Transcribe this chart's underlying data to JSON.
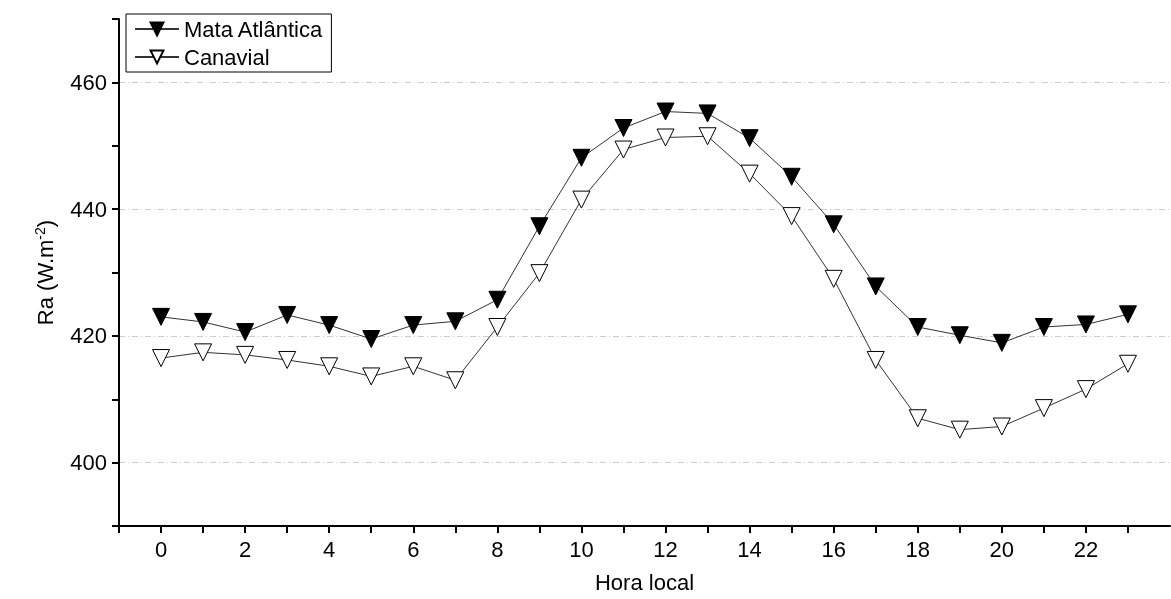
{
  "chart_data": {
    "type": "line",
    "xlabel": "Hora local",
    "ylabel": "Ra (W.m$^{-2}$)",
    "x": [
      0,
      1,
      2,
      3,
      4,
      5,
      6,
      7,
      8,
      9,
      10,
      11,
      12,
      13,
      14,
      15,
      16,
      17,
      18,
      19,
      20,
      21,
      22,
      23
    ],
    "series": [
      {
        "name": "Mata Atlântica",
        "color": "#000000",
        "values": [
          423.0,
          422.2,
          420.6,
          423.3,
          421.7,
          419.5,
          421.7,
          422.3,
          425.7,
          437.3,
          448.1,
          452.8,
          455.4,
          455.1,
          451.2,
          445.1,
          437.6,
          427.8,
          421.4,
          420.1,
          418.9,
          421.4,
          421.8,
          423.4
        ]
      },
      {
        "name": "Canavial",
        "color": "#ffffff",
        "values": [
          416.5,
          417.4,
          417.0,
          416.2,
          415.2,
          413.6,
          415.2,
          413.0,
          421.4,
          429.9,
          441.5,
          449.4,
          451.3,
          451.5,
          445.6,
          438.9,
          429.0,
          416.2,
          407.0,
          405.2,
          405.7,
          408.6,
          411.6,
          415.6
        ]
      }
    ],
    "xlim": [
      -1,
      24
    ],
    "xticks": [
      {
        "value": -1,
        "label": null
      },
      0,
      {
        "value": 1,
        "label": null
      },
      2,
      {
        "value": 3,
        "label": null
      },
      4,
      {
        "value": 5,
        "label": null
      },
      6,
      {
        "value": 7,
        "label": null
      },
      8,
      {
        "value": 9,
        "label": null
      },
      10,
      {
        "value": 11,
        "label": null
      },
      12,
      {
        "value": 13,
        "label": null
      },
      14,
      {
        "value": 15,
        "label": null
      },
      16,
      {
        "value": 17,
        "label": null
      },
      18,
      {
        "value": 19,
        "label": null
      },
      20,
      {
        "value": 21,
        "label": null
      },
      22,
      {
        "value": 23,
        "label": null
      }
    ],
    "ylim": [
      390,
      470
    ],
    "yticks": [
      {
        "value": 390,
        "label": null
      },
      400,
      {
        "value": 410,
        "label": null
      },
      420,
      {
        "value": 430,
        "label": null
      },
      440,
      {
        "value": 450,
        "label": null
      },
      460,
      {
        "value": 470,
        "label": null
      }
    ],
    "grid": "y",
    "legend": "top left",
    "marker": "triangle",
    "line_style": "solid"
  }
}
